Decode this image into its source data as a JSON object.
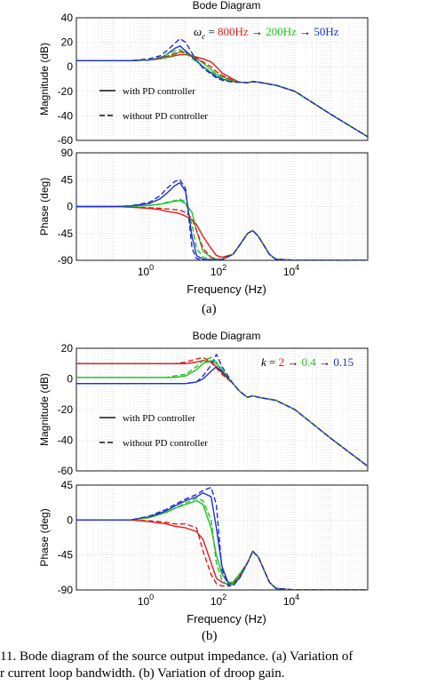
{
  "colors": {
    "red": "#e31a1c",
    "green": "#22c022",
    "blue": "#1f2fd0",
    "dark": "#111111"
  },
  "caption": {
    "line1": "11. Bode diagram of the source output impedance. (a) Variation of",
    "line2": "r current loop bandwidth. (b) Variation of droop gain."
  },
  "panels": [
    {
      "sub_label": "(a)",
      "title": "Bode Diagram",
      "xlabel": "Frequency  (Hz)",
      "annotation": {
        "prefix": "ω",
        "subscript": "c",
        "equals": " = ",
        "values": [
          "800Hz",
          "200Hz",
          "50Hz"
        ],
        "colors": [
          "red",
          "green",
          "blue"
        ],
        "arrow": " → "
      },
      "legend": {
        "solid": "with PD controller",
        "dashed": "without PD controller"
      },
      "magnitude": {
        "ylabel": "Magnitude (dB)",
        "yticks": [
          "40",
          "20",
          "0",
          "-20",
          "-40",
          "-60"
        ]
      },
      "phase": {
        "ylabel": "Phase (deg)",
        "yticks": [
          "90",
          "45",
          "0",
          "-45",
          "-90"
        ]
      },
      "xticks": [
        {
          "base": "10",
          "exp": "0"
        },
        {
          "base": "10",
          "exp": "2"
        },
        {
          "base": "10",
          "exp": "4"
        }
      ]
    },
    {
      "sub_label": "(b)",
      "title": "Bode Diagram",
      "xlabel": "Frequency  (Hz)",
      "annotation": {
        "prefix": "k",
        "subscript": "",
        "equals": " = ",
        "values": [
          "2",
          "0.4",
          "0.15"
        ],
        "colors": [
          "red",
          "green",
          "blue"
        ],
        "arrow": " → "
      },
      "legend": {
        "solid": "with PD controller",
        "dashed": "without PD controller"
      },
      "magnitude": {
        "ylabel": "Magnitude (dB)",
        "yticks": [
          "20",
          "0",
          "-20",
          "-40",
          "-60"
        ]
      },
      "phase": {
        "ylabel": "Phase (deg)",
        "yticks": [
          "45",
          "0",
          "-45",
          "-90"
        ]
      },
      "xticks": [
        {
          "base": "10",
          "exp": "0"
        },
        {
          "base": "10",
          "exp": "2"
        },
        {
          "base": "10",
          "exp": "4"
        }
      ]
    }
  ],
  "chart_data": [
    {
      "type": "line",
      "title": "Bode Diagram",
      "subplot": "magnitude",
      "xlabel": "Frequency  (Hz)",
      "ylabel": "Magnitude (dB)",
      "x_scale": "log",
      "xlim": [
        0.01,
        1000000
      ],
      "ylim": [
        -60,
        40
      ],
      "grid": true,
      "x": [
        0.01,
        0.1,
        0.3,
        1,
        2,
        3,
        5,
        7,
        10,
        20,
        30,
        50,
        70,
        100,
        200,
        300,
        500,
        700,
        1000,
        3000,
        10000,
        100000,
        1000000
      ],
      "series": [
        {
          "name": "800Hz",
          "color": "red",
          "style": "solid",
          "values": [
            5,
            5,
            5,
            5.5,
            6.5,
            7.5,
            9,
            10,
            10,
            8,
            6.5,
            4,
            0,
            -5,
            -10,
            -12.5,
            -13,
            -12,
            -12.5,
            -15,
            -20,
            -39,
            -57
          ]
        },
        {
          "name": "200Hz",
          "color": "green",
          "style": "solid",
          "values": [
            5,
            5,
            5,
            5.5,
            6.5,
            7.5,
            10,
            12,
            12,
            7,
            3,
            -2,
            -6,
            -8,
            -11,
            -12.5,
            -13,
            -12,
            -12.5,
            -15,
            -20,
            -39,
            -57
          ]
        },
        {
          "name": "50Hz",
          "color": "blue",
          "style": "solid",
          "values": [
            5,
            5,
            5,
            5.5,
            7,
            10,
            15,
            17,
            13,
            5,
            0,
            -5,
            -8,
            -10,
            -12,
            -12.5,
            -13,
            -12,
            -12.5,
            -15,
            -20,
            -39,
            -57
          ]
        },
        {
          "name": "800Hz",
          "color": "red",
          "style": "dashed",
          "values": [
            5,
            5,
            5,
            5.8,
            7,
            8.5,
            11,
            12.5,
            11,
            7,
            4,
            0,
            -4,
            -7,
            -11,
            -12.5,
            -13,
            -12,
            -12.5,
            -15,
            -20,
            -39,
            -57
          ]
        },
        {
          "name": "200Hz",
          "color": "green",
          "style": "dashed",
          "values": [
            5,
            5,
            5,
            5.8,
            8,
            10,
            13,
            14,
            11,
            4,
            0,
            -4,
            -7,
            -9,
            -12,
            -12.5,
            -13,
            -12,
            -12.5,
            -15,
            -20,
            -39,
            -57
          ]
        },
        {
          "name": "50Hz",
          "color": "blue",
          "style": "dashed",
          "values": [
            5,
            5,
            5,
            6.5,
            9,
            13,
            19,
            23,
            20,
            5,
            -1,
            -6,
            -9,
            -11,
            -12.5,
            -12.5,
            -13,
            -12,
            -12.5,
            -15,
            -20,
            -39,
            -57
          ]
        }
      ]
    },
    {
      "type": "line",
      "title": "",
      "subplot": "phase",
      "xlabel": "Frequency  (Hz)",
      "ylabel": "Phase (deg)",
      "x_scale": "log",
      "xlim": [
        0.01,
        1000000
      ],
      "ylim": [
        -90,
        90
      ],
      "grid": true,
      "x": [
        0.01,
        0.1,
        0.3,
        1,
        2,
        3,
        5,
        7,
        10,
        15,
        20,
        30,
        50,
        70,
        100,
        200,
        300,
        500,
        700,
        1000,
        2000,
        3000,
        10000,
        1000000
      ],
      "series": [
        {
          "name": "800Hz",
          "color": "red",
          "style": "solid",
          "values": [
            0,
            0,
            -1,
            -3,
            -5,
            -8,
            -10,
            -12,
            -16,
            -22,
            -30,
            -50,
            -70,
            -82,
            -85,
            -80,
            -65,
            -45,
            -40,
            -50,
            -80,
            -88,
            -90,
            -90
          ]
        },
        {
          "name": "200Hz",
          "color": "green",
          "style": "solid",
          "values": [
            0,
            0,
            0,
            2,
            4,
            6,
            9,
            10,
            5,
            -10,
            -40,
            -75,
            -85,
            -88,
            -88,
            -80,
            -65,
            -45,
            -40,
            -50,
            -80,
            -88,
            -90,
            -90
          ]
        },
        {
          "name": "50Hz",
          "color": "blue",
          "style": "solid",
          "values": [
            0,
            0,
            1,
            5,
            13,
            22,
            35,
            40,
            25,
            -50,
            -82,
            -88,
            -89,
            -89,
            -89,
            -80,
            -65,
            -45,
            -40,
            -50,
            -80,
            -88,
            -90,
            -90
          ]
        },
        {
          "name": "800Hz",
          "color": "red",
          "style": "dashed",
          "values": [
            0,
            0,
            -1,
            -2,
            -3,
            -4,
            -5,
            -6,
            -10,
            -20,
            -40,
            -70,
            -85,
            -88,
            -88,
            -80,
            -65,
            -45,
            -40,
            -50,
            -80,
            -88,
            -90,
            -90
          ]
        },
        {
          "name": "200Hz",
          "color": "green",
          "style": "dashed",
          "values": [
            0,
            0,
            0,
            2,
            4,
            7,
            10,
            12,
            8,
            -30,
            -70,
            -85,
            -88,
            -89,
            -89,
            -80,
            -65,
            -45,
            -40,
            -50,
            -80,
            -88,
            -90,
            -90
          ]
        },
        {
          "name": "50Hz",
          "color": "blue",
          "style": "dashed",
          "values": [
            0,
            0,
            1,
            7,
            18,
            30,
            42,
            45,
            30,
            -70,
            -87,
            -89,
            -89,
            -89,
            -89,
            -80,
            -65,
            -45,
            -40,
            -50,
            -80,
            -88,
            -90,
            -90
          ]
        }
      ]
    },
    {
      "type": "line",
      "title": "Bode Diagram",
      "subplot": "magnitude",
      "xlabel": "Frequency  (Hz)",
      "ylabel": "Magnitude (dB)",
      "x_scale": "log",
      "xlim": [
        0.01,
        1000000
      ],
      "ylim": [
        -60,
        20
      ],
      "grid": true,
      "x": [
        0.01,
        0.1,
        0.3,
        1,
        3,
        5,
        10,
        20,
        30,
        50,
        70,
        100,
        200,
        300,
        500,
        700,
        1000,
        3000,
        10000,
        100000,
        1000000
      ],
      "series": [
        {
          "name": "2",
          "color": "red",
          "style": "solid",
          "values": [
            10,
            10,
            10,
            10,
            10,
            10,
            10,
            11,
            12,
            11,
            8,
            4,
            -3,
            -8,
            -12,
            -11,
            -12,
            -14,
            -20,
            -39,
            -57
          ]
        },
        {
          "name": "0.4",
          "color": "green",
          "style": "solid",
          "values": [
            1,
            1,
            1,
            1,
            1,
            1,
            2,
            6,
            10,
            12,
            10,
            6,
            -3,
            -8,
            -12,
            -11,
            -12,
            -14,
            -20,
            -39,
            -57
          ]
        },
        {
          "name": "0.15",
          "color": "blue",
          "style": "solid",
          "values": [
            -3,
            -3,
            -3,
            -3,
            -3,
            -3,
            -3,
            -2,
            0,
            5,
            8,
            5,
            -3,
            -8,
            -12,
            -11,
            -12,
            -14,
            -20,
            -39,
            -57
          ]
        },
        {
          "name": "2",
          "color": "red",
          "style": "dashed",
          "values": [
            10,
            10,
            10,
            10,
            10,
            10,
            11,
            13,
            14,
            11,
            7,
            3,
            -3,
            -8,
            -12,
            -11,
            -12,
            -14,
            -20,
            -39,
            -57
          ]
        },
        {
          "name": "0.4",
          "color": "green",
          "style": "dashed",
          "values": [
            1,
            1,
            1,
            1,
            1,
            2,
            3,
            8,
            12,
            14,
            11,
            6,
            -3,
            -8,
            -12,
            -11,
            -12,
            -14,
            -20,
            -39,
            -57
          ]
        },
        {
          "name": "0.15",
          "color": "blue",
          "style": "dashed",
          "values": [
            -3,
            -3,
            -3,
            -3,
            -3,
            -3,
            -3,
            -2,
            2,
            9,
            16,
            8,
            -3,
            -8,
            -12,
            -11,
            -12,
            -14,
            -20,
            -39,
            -57
          ]
        }
      ]
    },
    {
      "type": "line",
      "title": "",
      "subplot": "phase",
      "xlabel": "Frequency  (Hz)",
      "ylabel": "Phase (deg)",
      "x_scale": "log",
      "xlim": [
        0.01,
        1000000
      ],
      "ylim": [
        -90,
        45
      ],
      "grid": true,
      "x": [
        0.01,
        0.1,
        0.3,
        1,
        3,
        5,
        10,
        20,
        30,
        50,
        70,
        100,
        150,
        200,
        300,
        500,
        700,
        1000,
        2000,
        3000,
        10000,
        1000000
      ],
      "series": [
        {
          "name": "2",
          "color": "red",
          "style": "solid",
          "values": [
            0,
            0,
            0,
            -2,
            -5,
            -8,
            -10,
            -15,
            -25,
            -55,
            -75,
            -80,
            -83,
            -80,
            -70,
            -55,
            -40,
            -48,
            -80,
            -88,
            -90,
            -90
          ]
        },
        {
          "name": "0.4",
          "color": "green",
          "style": "solid",
          "values": [
            0,
            0,
            0,
            3,
            10,
            15,
            20,
            25,
            20,
            -10,
            -45,
            -70,
            -80,
            -80,
            -70,
            -55,
            -40,
            -48,
            -80,
            -88,
            -90,
            -90
          ]
        },
        {
          "name": "0.15",
          "color": "blue",
          "style": "solid",
          "values": [
            0,
            0,
            0,
            4,
            12,
            18,
            25,
            30,
            35,
            30,
            -10,
            -60,
            -82,
            -83,
            -75,
            -55,
            -40,
            -48,
            -80,
            -88,
            -90,
            -90
          ]
        },
        {
          "name": "2",
          "color": "red",
          "style": "dashed",
          "values": [
            0,
            0,
            0,
            -1,
            -3,
            -5,
            -5,
            -10,
            -40,
            -70,
            -82,
            -85,
            -85,
            -82,
            -72,
            -55,
            -40,
            -48,
            -80,
            -88,
            -90,
            -90
          ]
        },
        {
          "name": "0.4",
          "color": "green",
          "style": "dashed",
          "values": [
            0,
            0,
            0,
            3,
            10,
            15,
            22,
            28,
            25,
            0,
            -55,
            -78,
            -84,
            -82,
            -72,
            -55,
            -40,
            -48,
            -80,
            -88,
            -90,
            -90
          ]
        },
        {
          "name": "0.15",
          "color": "blue",
          "style": "dashed",
          "values": [
            0,
            0,
            0,
            5,
            14,
            20,
            27,
            33,
            38,
            42,
            20,
            -65,
            -85,
            -85,
            -75,
            -55,
            -40,
            -48,
            -80,
            -88,
            -90,
            -90
          ]
        }
      ]
    }
  ]
}
